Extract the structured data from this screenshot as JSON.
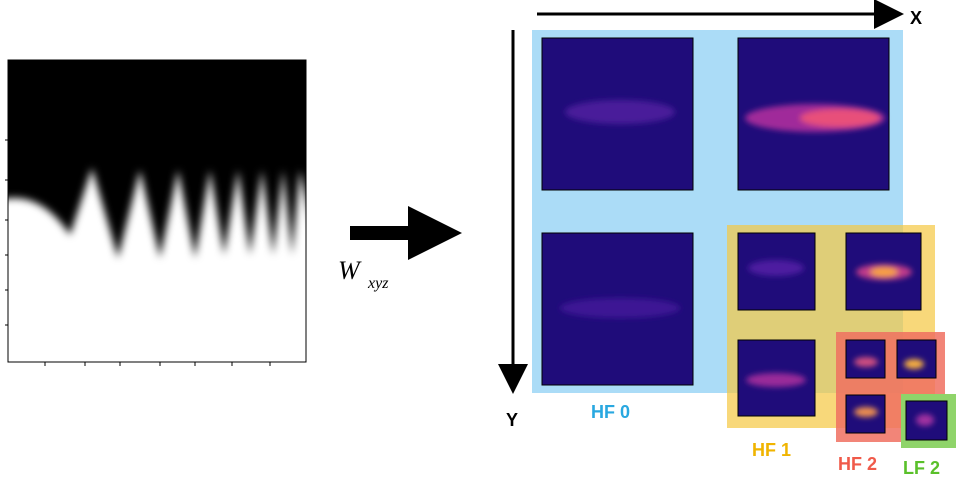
{
  "transform": {
    "symbol": "W",
    "subscript": "xyz"
  },
  "axes": {
    "x": "X",
    "y": "Y"
  },
  "bands": {
    "hf0": "HF 0",
    "hf1": "HF 1",
    "hf2": "HF 2",
    "lf2": "LF 2"
  }
}
